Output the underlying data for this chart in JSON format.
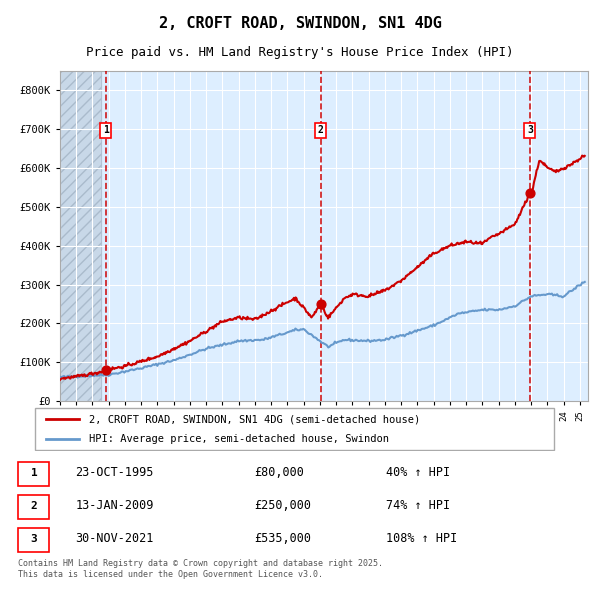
{
  "title": "2, CROFT ROAD, SWINDON, SN1 4DG",
  "subtitle": "Price paid vs. HM Land Registry's House Price Index (HPI)",
  "legend_line1": "2, CROFT ROAD, SWINDON, SN1 4DG (semi-detached house)",
  "legend_line2": "HPI: Average price, semi-detached house, Swindon",
  "footer": "Contains HM Land Registry data © Crown copyright and database right 2025.\nThis data is licensed under the Open Government Licence v3.0.",
  "sale_points": [
    {
      "label": "1",
      "date": "23-OCT-1995",
      "price": 80000,
      "hpi_pct": "40% ↑ HPI",
      "x": 1995.81
    },
    {
      "label": "2",
      "date": "13-JAN-2009",
      "price": 250000,
      "hpi_pct": "74% ↑ HPI",
      "x": 2009.04
    },
    {
      "label": "3",
      "date": "30-NOV-2021",
      "price": 535000,
      "hpi_pct": "108% ↑ HPI",
      "x": 2021.92
    }
  ],
  "vline_color": "#cc0000",
  "sale_marker_color": "#cc0000",
  "hpi_line_color": "#6699cc",
  "price_line_color": "#cc0000",
  "bg_color": "#ddeeff",
  "ylim": [
    0,
    850000
  ],
  "xlim": [
    1993.0,
    2025.5
  ],
  "yticks": [
    0,
    100000,
    200000,
    300000,
    400000,
    500000,
    600000,
    700000,
    800000
  ]
}
